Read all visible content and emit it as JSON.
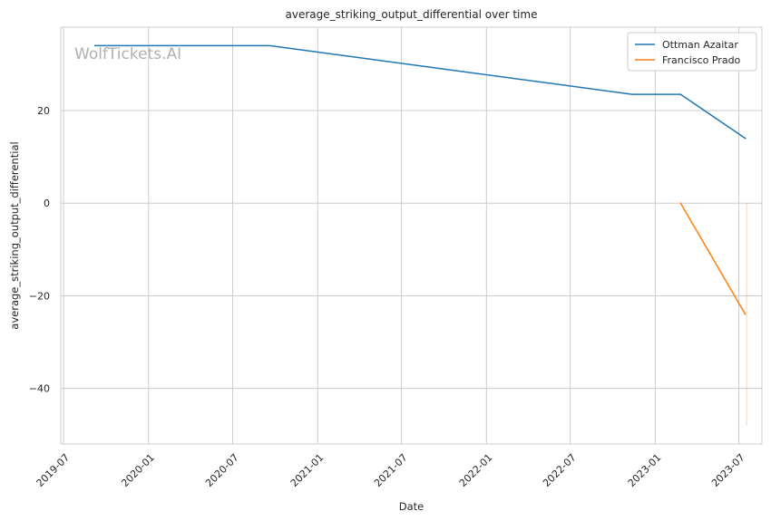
{
  "chart_data": {
    "type": "line",
    "title": "average_striking_output_differential over time",
    "xlabel": "Date",
    "ylabel": "average_striking_output_differential",
    "watermark": "WolfTickets.AI",
    "grid": true,
    "legend_position": "top-right",
    "x_type": "date",
    "xlim": [
      "2019-06-25",
      "2023-08-20"
    ],
    "ylim": [
      -52,
      38
    ],
    "x_ticks": [
      "2019-07-01",
      "2020-01-01",
      "2020-07-01",
      "2021-01-01",
      "2021-07-01",
      "2022-01-01",
      "2022-07-01",
      "2023-01-01",
      "2023-07-01"
    ],
    "x_tick_labels": [
      "2019-07",
      "2020-01",
      "2020-07",
      "2021-01",
      "2021-07",
      "2022-01",
      "2022-07",
      "2023-01",
      "2023-07"
    ],
    "y_ticks": [
      20,
      0,
      -20,
      -40
    ],
    "y_tick_labels": [
      "20",
      "0",
      "−20",
      "−40"
    ],
    "series": [
      {
        "name": "Ottman Azaitar",
        "color": "#1f77b4",
        "x": [
          "2019-09-07",
          "2020-09-19",
          "2022-11-12",
          "2023-02-25",
          "2023-07-15"
        ],
        "y": [
          34,
          34,
          23.5,
          23.5,
          14
        ]
      },
      {
        "name": "Francisco Prado",
        "color": "#ff7f0e",
        "x": [
          "2023-02-25",
          "2023-07-15"
        ],
        "y": [
          0,
          -24
        ]
      }
    ],
    "band": {
      "color": "#ff7f0e",
      "x": "2023-07-18",
      "y_range": [
        -48,
        0
      ]
    }
  }
}
